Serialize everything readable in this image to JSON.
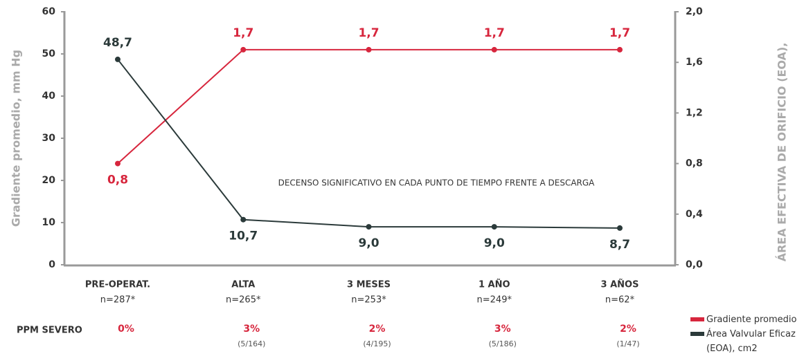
{
  "chart_data": {
    "type": "line",
    "categories": [
      "PRE-OPERAT.",
      "ALTA",
      "3 MESES",
      "1 AÑO",
      "3 AÑOS"
    ],
    "sample_sizes": [
      "n=287*",
      "n=265*",
      "n=253*",
      "n=249*",
      "n=62*"
    ],
    "series": [
      {
        "name": "Gradiente promedio",
        "color": "#d7263d",
        "axis": "y2",
        "values": [
          0.8,
          1.7,
          1.7,
          1.7,
          1.7
        ],
        "value_labels": [
          "0,8",
          "1,7",
          "1,7",
          "1,7",
          "1,7"
        ]
      },
      {
        "name": "Área Valvular Eficaz (EOA), cm2",
        "color": "#2b3a3a",
        "values": [
          48.7,
          10.7,
          9.0,
          9.0,
          8.7
        ],
        "value_labels": [
          "48,7",
          "10,7",
          "9,0",
          "9,0",
          "8,7"
        ]
      }
    ],
    "ylabel": "Gradiente promedio, mm Hg",
    "y2label": "ÁREA EFECTIVA DE ORIFICIO (EOA),",
    "ylim": [
      0,
      60
    ],
    "yticks": [
      0,
      10,
      20,
      30,
      40,
      50,
      60
    ],
    "y2lim": [
      0,
      2
    ],
    "y2ticks": [
      {
        "value": 0,
        "label": "0,0"
      },
      {
        "value": 0.4,
        "label": "0,4"
      },
      {
        "value": 0.8,
        "label": "0,8"
      },
      {
        "value": 1.2,
        "label": "1,2"
      },
      {
        "value": 1.6,
        "label": "1,6"
      },
      {
        "value": 2,
        "label": "2,0"
      }
    ],
    "annotation": "DECENSO SIGNIFICATIVO EN CADA PUNTO DE TIEMPO FRENTE A DESCARGA",
    "ppm_label": "PPM SEVERO",
    "ppm_values": [
      "0%",
      "3%",
      "2%",
      "3%",
      "2%"
    ],
    "ppm_counts": [
      null,
      "(5/164)",
      "(4/195)",
      "(5/186)",
      "(1/47)"
    ],
    "grid": false
  }
}
